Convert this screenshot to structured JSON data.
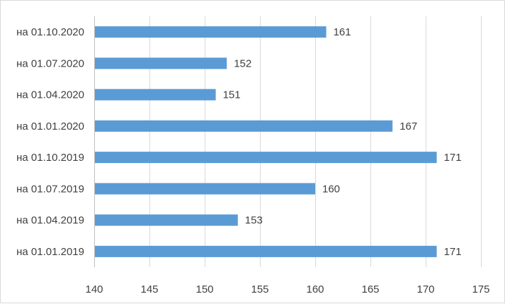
{
  "chart_data": {
    "type": "bar",
    "orientation": "horizontal",
    "categories": [
      "на 01.01.2019",
      "на 01.04.2019",
      "на 01.07.2019",
      "на 01.10.2019",
      "на 01.01.2020",
      "на 01.04.2020",
      "на 01.07.2020",
      "на 01.10.2020"
    ],
    "values": [
      171,
      153,
      160,
      171,
      167,
      151,
      152,
      161
    ],
    "data_labels": [
      "171",
      "153",
      "160",
      "171",
      "167",
      "151",
      "152",
      "161"
    ],
    "xlim": [
      140,
      175
    ],
    "xticks": [
      140,
      145,
      150,
      155,
      160,
      165,
      170,
      175
    ],
    "xtick_labels": [
      "140",
      "145",
      "150",
      "155",
      "160",
      "165",
      "170",
      "175"
    ],
    "title": "",
    "xlabel": "",
    "ylabel": "",
    "grid": "vertical",
    "legend": "none",
    "bar_color": "#5b9bd5"
  }
}
